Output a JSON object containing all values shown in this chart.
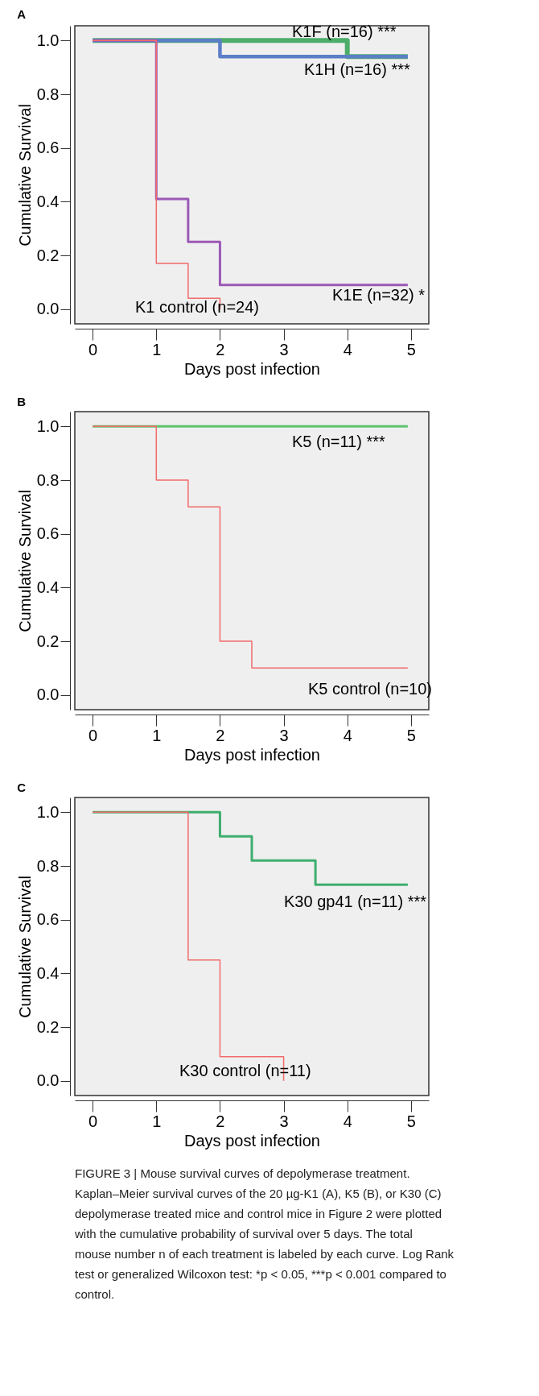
{
  "chart_data": [
    {
      "type": "step",
      "title": "A",
      "xlabel": "Days post infection",
      "ylabel": "Cumulative Survival",
      "xlim": [
        -0.28,
        5.28
      ],
      "xticks": [
        0,
        1,
        2,
        3,
        4,
        5
      ],
      "ylim": [
        -0.055,
        1.055
      ],
      "yticks": [
        {
          "value": 0,
          "label": "0.0"
        },
        {
          "value": 0.2,
          "label": "0.2"
        },
        {
          "value": 0.4,
          "label": "0.4"
        },
        {
          "value": 0.6,
          "label": "0.6"
        },
        {
          "value": 0.8,
          "label": "0.8"
        },
        {
          "value": 1,
          "label": "1.0"
        }
      ],
      "grid": false,
      "marker": "none",
      "line_style": "solid",
      "series": [
        {
          "name": "K1F (n=16) ***",
          "color": "#4dad6a",
          "x": [
            0,
            4,
            4.95
          ],
          "values": [
            1,
            0.94,
            0.94
          ]
        },
        {
          "name": "K1H (n=16) ***",
          "color": "#5b7fc7",
          "x": [
            0,
            2,
            4.95
          ],
          "values": [
            1,
            0.94,
            0.94
          ]
        },
        {
          "name": "K1E (n=32) *",
          "color": "#9b59b6",
          "x": [
            0,
            1,
            1.5,
            2,
            4.95
          ],
          "values": [
            1,
            0.41,
            0.25,
            0.09,
            0.09
          ]
        },
        {
          "name": "K1 control (n=24)",
          "color": "#f26b6b",
          "x": [
            0,
            1,
            1.5,
            2
          ],
          "values": [
            1,
            0.17,
            0.04,
            0.0
          ]
        }
      ]
    },
    {
      "type": "step",
      "title": "B",
      "xlabel": "Days post infection",
      "ylabel": "Cumulative Survival",
      "xlim": [
        -0.28,
        5.28
      ],
      "xticks": [
        0,
        1,
        2,
        3,
        4,
        5
      ],
      "ylim": [
        -0.055,
        1.055
      ],
      "yticks": [
        {
          "value": 0,
          "label": "0.0"
        },
        {
          "value": 0.2,
          "label": "0.2"
        },
        {
          "value": 0.4,
          "label": "0.4"
        },
        {
          "value": 0.6,
          "label": "0.6"
        },
        {
          "value": 0.8,
          "label": "0.8"
        },
        {
          "value": 1,
          "label": "1.0"
        }
      ],
      "grid": false,
      "marker": "none",
      "line_style": "solid",
      "series": [
        {
          "name": "K5 (n=11) ***",
          "color": "#5cc46e",
          "x": [
            0,
            4.95
          ],
          "values": [
            1,
            1
          ]
        },
        {
          "name": "K5 control (n=10)",
          "color": "#f26b6b",
          "x": [
            0,
            1,
            1.5,
            2,
            2.5,
            4.95
          ],
          "values": [
            1,
            0.8,
            0.7,
            0.2,
            0.1,
            0.1
          ]
        }
      ]
    },
    {
      "type": "step",
      "title": "C",
      "xlabel": "Days post infection",
      "ylabel": "Cumulative Survival",
      "xlim": [
        -0.28,
        5.28
      ],
      "xticks": [
        0,
        1,
        2,
        3,
        4,
        5
      ],
      "ylim": [
        -0.055,
        1.055
      ],
      "yticks": [
        {
          "value": 0,
          "label": "0.0"
        },
        {
          "value": 0.2,
          "label": "0.2"
        },
        {
          "value": 0.4,
          "label": "0.4"
        },
        {
          "value": 0.6,
          "label": "0.6"
        },
        {
          "value": 0.8,
          "label": "0.8"
        },
        {
          "value": 1,
          "label": "1.0"
        }
      ],
      "grid": false,
      "marker": "none",
      "line_style": "solid",
      "series": [
        {
          "name": "K30 gp41 (n=11) ***",
          "color": "#3fae6e",
          "x": [
            0,
            2,
            2.5,
            3.5,
            4.95
          ],
          "values": [
            1,
            0.91,
            0.82,
            0.73,
            0.73
          ]
        },
        {
          "name": "K30 control (n=11)",
          "color": "#f26b6b",
          "x": [
            0,
            1.5,
            2,
            3
          ],
          "values": [
            1,
            0.45,
            0.09,
            0.0
          ]
        }
      ],
      "annotations": [
        "FIGURE 3 | Mouse survival curves of depolymerase treatment. Kaplan–Meier survival curves of the 20 µg-K1 (A), K5 (B), or K30 (C) depolymerase treated mice and control mice in Figure 2 were plotted with the cumulative probability of survival over 5 days. The total mouse number n of each treatment is labeled by each curve. Log Rank test or generalized Wilcoxon test: *p < 0.05, ***p < 0.001 compared to control."
      ]
    }
  ]
}
